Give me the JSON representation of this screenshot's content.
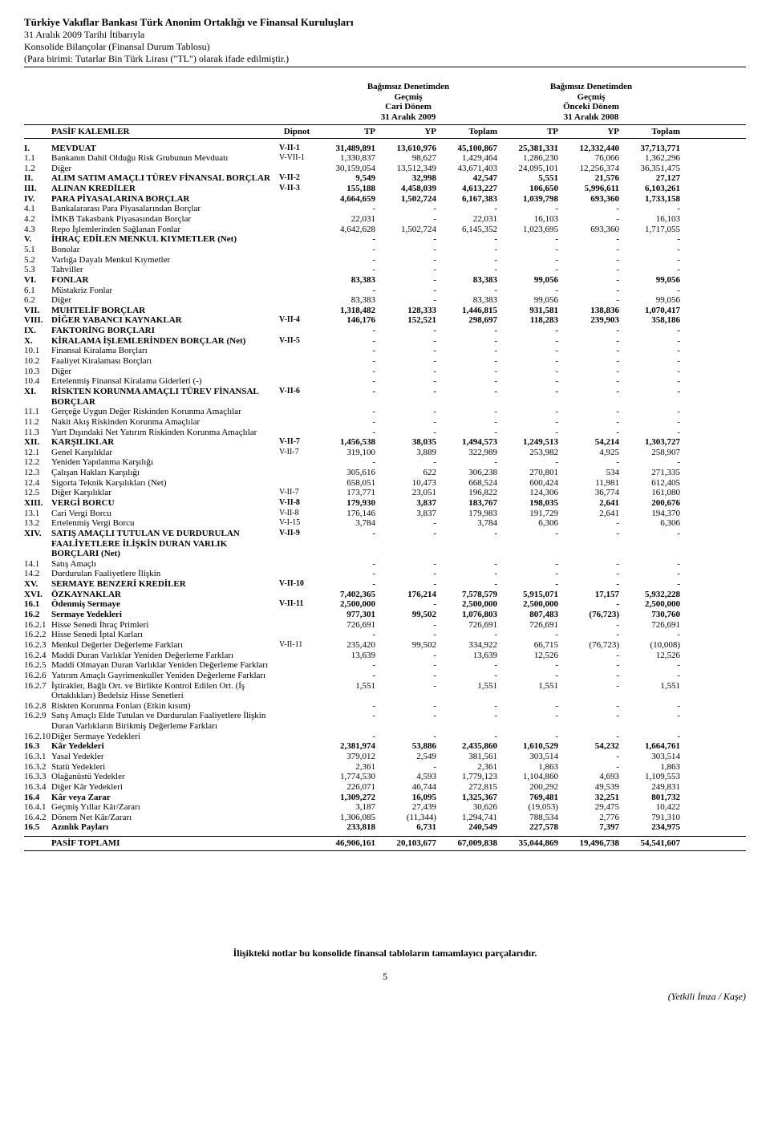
{
  "header": {
    "line1": "Türkiye Vakıflar Bankası Türk Anonim Ortaklığı ve Finansal Kuruluşları",
    "line2": "31 Aralık 2009 Tarihi İtibarıyla",
    "line3": "Konsolide Bilançolar (Finansal Durum Tablosu)",
    "line4": "(Para birimi: Tutarlar Bin Türk Lirası (\"TL\") olarak ifade edilmiştir.)"
  },
  "audit": {
    "group1_l1": "Bağımsız Denetimden",
    "group1_l2": "Geçmiş",
    "group1_l3": "Cari Dönem",
    "group1_l4": "31 Aralık 2009",
    "group2_l1": "Bağımsız Denetimden",
    "group2_l2": "Geçmiş",
    "group2_l3": "Önceki Dönem",
    "group2_l4": "31 Aralık 2008"
  },
  "cols": {
    "pasif": "PASİF KALEMLER",
    "dipnot": "Dipnot",
    "tp": "TP",
    "yp": "YP",
    "toplam": "Toplam"
  },
  "rows": [
    {
      "bold": true,
      "code": "I.",
      "desc": "MEVDUAT",
      "note": "V-II-1",
      "v": [
        "31,489,891",
        "13,610,976",
        "45,100,867",
        "25,381,331",
        "12,332,440",
        "37,713,771"
      ]
    },
    {
      "code": "1.1",
      "desc": "Bankanın Dahil Olduğu Risk Grubunun Mevduatı",
      "note": "V-VII-1",
      "v": [
        "1,330,837",
        "98,627",
        "1,429,464",
        "1,286,230",
        "76,066",
        "1,362,296"
      ]
    },
    {
      "code": "1.2",
      "desc": "Diğer",
      "note": "",
      "v": [
        "30,159,054",
        "13,512,349",
        "43,671,403",
        "24,095,101",
        "12,256,374",
        "36,351,475"
      ]
    },
    {
      "bold": true,
      "code": "II.",
      "desc": "ALIM SATIM AMAÇLI TÜREV FİNANSAL BORÇLAR",
      "note": "V-II-2",
      "v": [
        "9,549",
        "32,998",
        "42,547",
        "5,551",
        "21,576",
        "27,127"
      ]
    },
    {
      "bold": true,
      "code": "III.",
      "desc": "ALINAN KREDİLER",
      "note": "V-II-3",
      "v": [
        "155,188",
        "4,458,039",
        "4,613,227",
        "106,650",
        "5,996,611",
        "6,103,261"
      ]
    },
    {
      "bold": true,
      "code": "IV.",
      "desc": "PARA PİYASALARINA BORÇLAR",
      "note": "",
      "v": [
        "4,664,659",
        "1,502,724",
        "6,167,383",
        "1,039,798",
        "693,360",
        "1,733,158"
      ]
    },
    {
      "code": "4.1",
      "desc": "Bankalararası Para Piyasalarından Borçlar",
      "note": "",
      "v": [
        "-",
        "-",
        "-",
        "-",
        "-",
        "-"
      ]
    },
    {
      "code": "4.2",
      "desc": "İMKB Takasbank Piyasasından Borçlar",
      "note": "",
      "v": [
        "22,031",
        "-",
        "22,031",
        "16,103",
        "-",
        "16,103"
      ]
    },
    {
      "code": "4.3",
      "desc": "Repo İşlemlerinden Sağlanan Fonlar",
      "note": "",
      "v": [
        "4,642,628",
        "1,502,724",
        "6,145,352",
        "1,023,695",
        "693,360",
        "1,717,055"
      ]
    },
    {
      "bold": true,
      "code": "V.",
      "desc": "İHRAÇ EDİLEN MENKUL KIYMETLER (Net)",
      "note": "",
      "v": [
        "-",
        "-",
        "-",
        "-",
        "-",
        "-"
      ]
    },
    {
      "code": "5.1",
      "desc": "Bonolar",
      "note": "",
      "v": [
        "-",
        "-",
        "-",
        "-",
        "-",
        "-"
      ]
    },
    {
      "code": "5.2",
      "desc": "Varlığa Dayalı Menkul Kıymetler",
      "note": "",
      "v": [
        "-",
        "-",
        "-",
        "-",
        "-",
        "-"
      ]
    },
    {
      "code": "5.3",
      "desc": "Tahviller",
      "note": "",
      "v": [
        "-",
        "-",
        "-",
        "-",
        "-",
        "-"
      ]
    },
    {
      "bold": true,
      "code": "VI.",
      "desc": "FONLAR",
      "note": "",
      "v": [
        "83,383",
        "-",
        "83,383",
        "99,056",
        "-",
        "99,056"
      ]
    },
    {
      "code": "6.1",
      "desc": "Müstakriz Fonlar",
      "note": "",
      "v": [
        "-",
        "-",
        "-",
        "-",
        "-",
        "-"
      ]
    },
    {
      "code": "6.2",
      "desc": "Diğer",
      "note": "",
      "v": [
        "83,383",
        "-",
        "83,383",
        "99,056",
        "-",
        "99,056"
      ]
    },
    {
      "bold": true,
      "code": "VII.",
      "desc": "MUHTELİF BORÇLAR",
      "note": "",
      "v": [
        "1,318,482",
        "128,333",
        "1,446,815",
        "931,581",
        "138,836",
        "1,070,417"
      ]
    },
    {
      "bold": true,
      "code": "VIII.",
      "desc": "DİĞER YABANCI KAYNAKLAR",
      "note": "V-II-4",
      "v": [
        "146,176",
        "152,521",
        "298,697",
        "118,283",
        "239,903",
        "358,186"
      ]
    },
    {
      "bold": true,
      "code": "IX.",
      "desc": "FAKTORİNG BORÇLARI",
      "note": "",
      "v": [
        "-",
        "-",
        "-",
        "-",
        "-",
        "-"
      ]
    },
    {
      "bold": true,
      "code": "X.",
      "desc": "KİRALAMA İŞLEMLERİNDEN BORÇLAR (Net)",
      "note": "V-II-5",
      "v": [
        "-",
        "-",
        "-",
        "-",
        "-",
        "-"
      ]
    },
    {
      "code": "10.1",
      "desc": "Finansal Kiralama Borçları",
      "note": "",
      "v": [
        "-",
        "-",
        "-",
        "-",
        "-",
        "-"
      ]
    },
    {
      "code": "10.2",
      "desc": "Faaliyet Kiralaması Borçları",
      "note": "",
      "v": [
        "-",
        "-",
        "-",
        "-",
        "-",
        "-"
      ]
    },
    {
      "code": "10.3",
      "desc": "Diğer",
      "note": "",
      "v": [
        "-",
        "-",
        "-",
        "-",
        "-",
        "-"
      ]
    },
    {
      "code": "10.4",
      "desc": "Ertelenmiş Finansal Kiralama Giderleri (-)",
      "note": "",
      "v": [
        "-",
        "-",
        "-",
        "-",
        "-",
        "-"
      ]
    },
    {
      "bold": true,
      "code": "XI.",
      "desc": "RİSKTEN KORUNMA AMAÇLI TÜREV FİNANSAL BORÇLAR",
      "note": "V-II-6",
      "v": [
        "-",
        "-",
        "-",
        "-",
        "-",
        "-"
      ]
    },
    {
      "code": "11.1",
      "desc": "Gerçeğe Uygun Değer Riskinden Korunma Amaçlılar",
      "note": "",
      "v": [
        "-",
        "-",
        "-",
        "-",
        "-",
        "-"
      ]
    },
    {
      "code": "11.2",
      "desc": "Nakit Akış Riskinden Korunma Amaçlılar",
      "note": "",
      "v": [
        "-",
        "-",
        "-",
        "-",
        "-",
        "-"
      ]
    },
    {
      "code": "11.3",
      "desc": "Yurt Dışındaki Net Yatırım Riskinden Korunma Amaçlılar",
      "note": "",
      "v": [
        "-",
        "-",
        "-",
        "-",
        "-",
        "-"
      ]
    },
    {
      "bold": true,
      "code": "XII.",
      "desc": "KARŞILIKLAR",
      "note": "V-II-7",
      "v": [
        "1,456,538",
        "38,035",
        "1,494,573",
        "1,249,513",
        "54,214",
        "1,303,727"
      ]
    },
    {
      "code": "12.1",
      "desc": "Genel Karşılıklar",
      "note": "V-II-7",
      "v": [
        "319,100",
        "3,889",
        "322,989",
        "253,982",
        "4,925",
        "258,907"
      ]
    },
    {
      "code": "12.2",
      "desc": "Yeniden Yapılanma Karşılığı",
      "note": "",
      "v": [
        "-",
        "-",
        "-",
        "-",
        "-",
        "-"
      ]
    },
    {
      "code": "12.3",
      "desc": "Çalışan Hakları Karşılığı",
      "note": "",
      "v": [
        "305,616",
        "622",
        "306,238",
        "270,801",
        "534",
        "271,335"
      ]
    },
    {
      "code": "12.4",
      "desc": "Sigorta Teknik Karşılıkları (Net)",
      "note": "",
      "v": [
        "658,051",
        "10,473",
        "668,524",
        "600,424",
        "11,981",
        "612,405"
      ]
    },
    {
      "code": "12.5",
      "desc": "Diğer Karşılıklar",
      "note": "V-II-7",
      "v": [
        "173,771",
        "23,051",
        "196,822",
        "124,306",
        "36,774",
        "161,080"
      ]
    },
    {
      "bold": true,
      "code": "XIII.",
      "desc": "VERGİ BORCU",
      "note": "V-II-8",
      "v": [
        "179,930",
        "3,837",
        "183,767",
        "198,035",
        "2,641",
        "200,676"
      ]
    },
    {
      "code": "13.1",
      "desc": "Cari Vergi Borcu",
      "note": "V-II-8",
      "v": [
        "176,146",
        "3,837",
        "179,983",
        "191,729",
        "2,641",
        "194,370"
      ]
    },
    {
      "code": "13.2",
      "desc": "Ertelenmiş Vergi Borcu",
      "note": "V-I-15",
      "v": [
        "3,784",
        "-",
        "3,784",
        "6,306",
        "-",
        "6,306"
      ]
    },
    {
      "bold": true,
      "code": "XIV.",
      "desc": "SATIŞ AMAÇLI TUTULAN VE DURDURULAN FAALİYETLERE İLİŞKİN DURAN VARLIK BORÇLARI (Net)",
      "note": "V-II-9",
      "v": [
        "-",
        "-",
        "-",
        "-",
        "-",
        "-"
      ]
    },
    {
      "code": "14.1",
      "desc": "Satış Amaçlı",
      "note": "",
      "v": [
        "-",
        "-",
        "-",
        "-",
        "-",
        "-"
      ]
    },
    {
      "code": "14.2",
      "desc": "Durdurulan Faaliyetlere İlişkin",
      "note": "",
      "v": [
        "-",
        "-",
        "-",
        "-",
        "-",
        "-"
      ]
    },
    {
      "bold": true,
      "code": "XV.",
      "desc": "SERMAYE BENZERİ KREDİLER",
      "note": "V-II-10",
      "v": [
        "-",
        "-",
        "-",
        "-",
        "-",
        "-"
      ]
    },
    {
      "bold": true,
      "code": "XVI.",
      "desc": "ÖZKAYNAKLAR",
      "note": "",
      "v": [
        "7,402,365",
        "176,214",
        "7,578,579",
        "5,915,071",
        "17,157",
        "5,932,228"
      ]
    },
    {
      "bold": true,
      "code": "16.1",
      "desc": "Ödenmiş Sermaye",
      "note": "V-II-11",
      "v": [
        "2,500,000",
        "-",
        "2,500,000",
        "2,500,000",
        "-",
        "2,500,000"
      ]
    },
    {
      "bold": true,
      "code": "16.2",
      "desc": "Sermaye Yedekleri",
      "note": "",
      "v": [
        "977,301",
        "99,502",
        "1,076,803",
        "807,483",
        "(76,723)",
        "730,760"
      ]
    },
    {
      "code": "16.2.1",
      "desc": "Hisse Senedi İhraç Primleri",
      "note": "",
      "v": [
        "726,691",
        "-",
        "726,691",
        "726,691",
        "-",
        "726,691"
      ]
    },
    {
      "code": "16.2.2",
      "desc": "Hisse Senedi İptal Karları",
      "note": "",
      "v": [
        "-",
        "-",
        "-",
        "-",
        "-",
        "-"
      ]
    },
    {
      "code": "16.2.3",
      "desc": "Menkul Değerler Değerleme Farkları",
      "note": "V-II-11",
      "v": [
        "235,420",
        "99,502",
        "334,922",
        "66,715",
        "(76,723)",
        "(10,008)"
      ]
    },
    {
      "code": "16.2.4",
      "desc": "Maddi Duran Varlıklar Yeniden Değerleme Farkları",
      "note": "",
      "v": [
        "13,639",
        "-",
        "13,639",
        "12,526",
        "-",
        "12,526"
      ]
    },
    {
      "code": "16.2.5",
      "desc": "Maddi Olmayan Duran Varlıklar Yeniden Değerleme Farkları",
      "note": "",
      "v": [
        "-",
        "-",
        "-",
        "-",
        "-",
        "-"
      ]
    },
    {
      "code": "16.2.6",
      "desc": "Yatırım Amaçlı Gayrimenkuller Yeniden Değerleme Farkları",
      "note": "",
      "v": [
        "-",
        "-",
        "-",
        "-",
        "-",
        "-"
      ]
    },
    {
      "code": "16.2.7",
      "desc": "İştirakler, Bağlı Ort. ve Birlikte Kontrol Edilen Ort. (İş Ortaklıkları) Bedelsiz Hisse Senetleri",
      "note": "",
      "v": [
        "1,551",
        "-",
        "1,551",
        "1,551",
        "-",
        "1,551"
      ]
    },
    {
      "code": "16.2.8",
      "desc": "Riskten Korunma Fonları (Etkin kısım)",
      "note": "",
      "v": [
        "-",
        "-",
        "-",
        "-",
        "-",
        "-"
      ]
    },
    {
      "code": "16.2.9",
      "desc": "Satış Amaçlı Elde Tutulan ve Durdurulan Faaliyetlere İlişkin Duran Varlıkların Birikmiş Değerleme Farkları",
      "note": "",
      "v": [
        "-",
        "-",
        "-",
        "-",
        "-",
        "-"
      ]
    },
    {
      "code": "16.2.10",
      "desc": "Diğer Sermaye Yedekleri",
      "note": "",
      "v": [
        "-",
        "-",
        "-",
        "-",
        "-",
        "-"
      ]
    },
    {
      "bold": true,
      "code": "16.3",
      "desc": "Kâr Yedekleri",
      "note": "",
      "v": [
        "2,381,974",
        "53,886",
        "2,435,860",
        "1,610,529",
        "54,232",
        "1,664,761"
      ]
    },
    {
      "code": "16.3.1",
      "desc": "Yasal Yedekler",
      "note": "",
      "v": [
        "379,012",
        "2,549",
        "381,561",
        "303,514",
        "-",
        "303,514"
      ]
    },
    {
      "code": "16.3.2",
      "desc": "Statü Yedekleri",
      "note": "",
      "v": [
        "2,361",
        "-",
        "2,361",
        "1,863",
        "-",
        "1,863"
      ]
    },
    {
      "code": "16.3.3",
      "desc": "Olağanüstü Yedekler",
      "note": "",
      "v": [
        "1,774,530",
        "4,593",
        "1,779,123",
        "1,104,860",
        "4,693",
        "1,109,553"
      ]
    },
    {
      "code": "16.3.4",
      "desc": "Diğer Kâr Yedekleri",
      "note": "",
      "v": [
        "226,071",
        "46,744",
        "272,815",
        "200,292",
        "49,539",
        "249,831"
      ]
    },
    {
      "bold": true,
      "code": "16.4",
      "desc": "Kâr veya Zarar",
      "note": "",
      "v": [
        "1,309,272",
        "16,095",
        "1,325,367",
        "769,481",
        "32,251",
        "801,732"
      ]
    },
    {
      "code": "16.4.1",
      "desc": "Geçmiş Yıllar Kâr/Zararı",
      "note": "",
      "v": [
        "3,187",
        "27,439",
        "30,626",
        "(19,053)",
        "29,475",
        "10,422"
      ]
    },
    {
      "code": "16.4.2",
      "desc": "Dönem Net Kâr/Zararı",
      "note": "",
      "v": [
        "1,306,085",
        "(11,344)",
        "1,294,741",
        "788,534",
        "2,776",
        "791,310"
      ]
    },
    {
      "bold": true,
      "code": "16.5",
      "desc": "Azınlık Payları",
      "note": "",
      "v": [
        "233,818",
        "6,731",
        "240,549",
        "227,578",
        "7,397",
        "234,975"
      ]
    }
  ],
  "total": {
    "label": "PASİF TOPLAMI",
    "v": [
      "46,906,161",
      "20,103,677",
      "67,009,838",
      "35,044,869",
      "19,496,738",
      "54,541,607"
    ]
  },
  "footnote": "İlişikteki notlar bu konsolide finansal tabloların tamamlayıcı parçalarıdır.",
  "pagenum": "5",
  "sign": "(Yetkili İmza / Kaşe)"
}
